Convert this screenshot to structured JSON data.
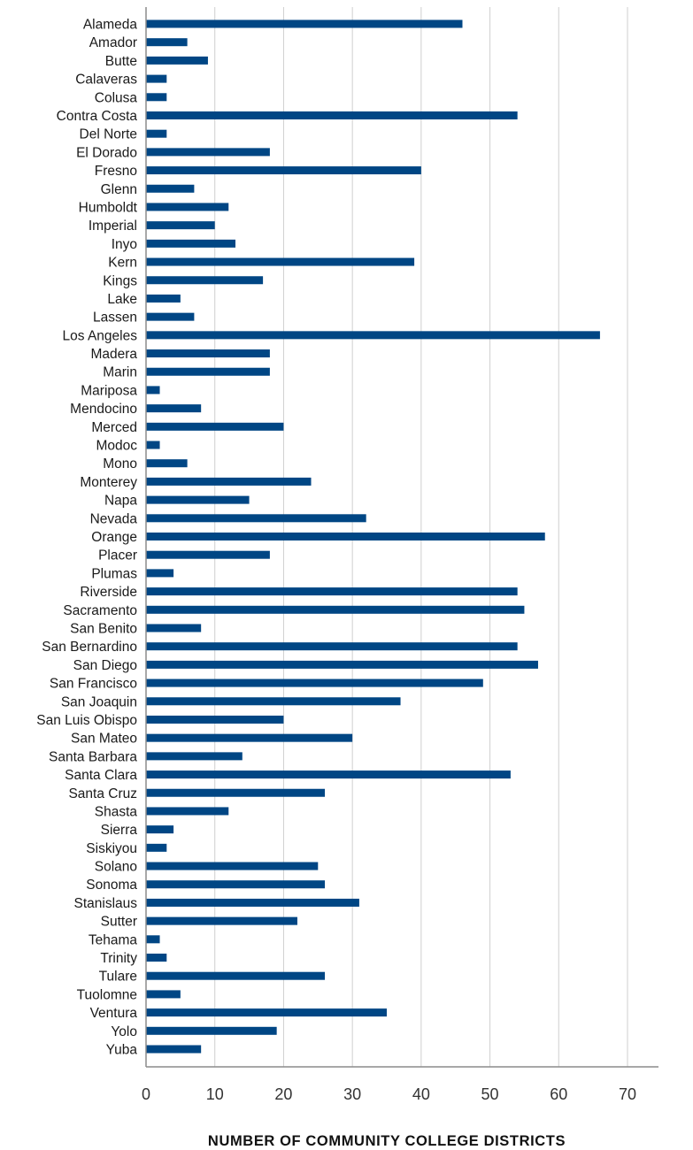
{
  "chart_data": {
    "type": "bar",
    "orientation": "horizontal",
    "title": "",
    "xlabel": "NUMBER OF COMMUNITY COLLEGE DISTRICTS",
    "ylabel": "",
    "xlim": [
      0,
      75
    ],
    "xticks": [
      0,
      10,
      20,
      30,
      40,
      50,
      60,
      70
    ],
    "grid": "vertical",
    "bar_color": "#004684",
    "categories": [
      "Alameda",
      "Amador",
      "Butte",
      "Calaveras",
      "Colusa",
      "Contra Costa",
      "Del Norte",
      "El Dorado",
      "Fresno",
      "Glenn",
      "Humboldt",
      "Imperial",
      "Inyo",
      "Kern",
      "Kings",
      "Lake",
      "Lassen",
      "Los Angeles",
      "Madera",
      "Marin",
      "Mariposa",
      "Mendocino",
      "Merced",
      "Modoc",
      "Mono",
      "Monterey",
      "Napa",
      "Nevada",
      "Orange",
      "Placer",
      "Plumas",
      "Riverside",
      "Sacramento",
      "San Benito",
      "San Bernardino",
      "San Diego",
      "San Francisco",
      "San Joaquin",
      "San Luis Obispo",
      "San Mateo",
      "Santa Barbara",
      "Santa Clara",
      "Santa Cruz",
      "Shasta",
      "Sierra",
      "Siskiyou",
      "Solano",
      "Sonoma",
      "Stanislaus",
      "Sutter",
      "Tehama",
      "Trinity",
      "Tulare",
      "Tuolomne",
      "Ventura",
      "Yolo",
      "Yuba"
    ],
    "values": [
      46,
      6,
      9,
      3,
      3,
      54,
      3,
      18,
      40,
      7,
      12,
      10,
      13,
      39,
      17,
      5,
      7,
      66,
      18,
      18,
      2,
      8,
      20,
      2,
      6,
      24,
      15,
      32,
      58,
      18,
      4,
      54,
      55,
      8,
      54,
      57,
      49,
      37,
      20,
      30,
      14,
      53,
      26,
      12,
      4,
      3,
      25,
      26,
      31,
      22,
      2,
      3,
      26,
      5,
      35,
      19,
      8
    ]
  }
}
